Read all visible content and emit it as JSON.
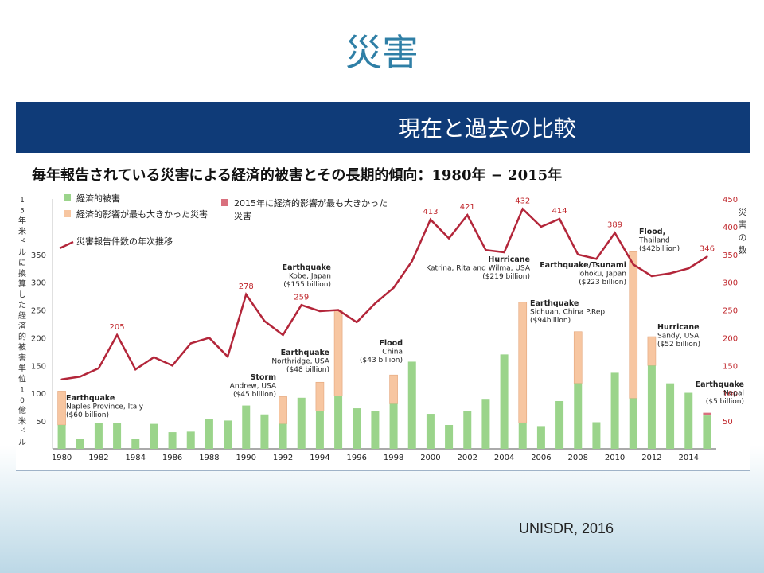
{
  "slide": {
    "title": "災害",
    "banner": "現在と過去の比較",
    "source": "UNISDR, 2016"
  },
  "colors": {
    "loss_bar": "#9bd48b",
    "max_bar": "#f7c6a1",
    "bar_2015": "#d9707e",
    "line": "#b3263a",
    "axis_right": "#c0282d",
    "banner": "#0f3b78",
    "title": "#2f7fa6"
  },
  "chart_data": {
    "type": "bar",
    "title": "毎年報告されている災害による経済的被害とその長期的傾向：1980年 − 2015年",
    "ylabel": "15年米ドルに換算した経済的被害単位10億米ドル",
    "y2label": "災害の数",
    "ylim": [
      0,
      450
    ],
    "y2lim": [
      0,
      450
    ],
    "yticks": [
      50,
      100,
      150,
      200,
      250,
      300,
      350
    ],
    "y2ticks": [
      50,
      100,
      150,
      200,
      250,
      300,
      350,
      400,
      450
    ],
    "years": [
      1980,
      1981,
      1982,
      1983,
      1984,
      1985,
      1986,
      1987,
      1988,
      1989,
      1990,
      1991,
      1992,
      1993,
      1994,
      1995,
      1996,
      1997,
      1998,
      1999,
      2000,
      2001,
      2002,
      2003,
      2004,
      2005,
      2006,
      2007,
      2008,
      2009,
      2010,
      2011,
      2012,
      2013,
      2014,
      2015
    ],
    "xtick_labels": [
      "1980",
      "1982",
      "1984",
      "1986",
      "1988",
      "1990",
      "1992",
      "1994",
      "1996",
      "1998",
      "2000",
      "2002",
      "2004",
      "2006",
      "2008",
      "2010",
      "2012",
      "2014"
    ],
    "series": [
      {
        "name": "経済的被害",
        "type": "bar",
        "values": [
          43,
          18,
          47,
          47,
          18,
          45,
          30,
          31,
          53,
          51,
          78,
          62,
          45,
          92,
          68,
          95,
          73,
          68,
          81,
          157,
          63,
          43,
          68,
          90,
          170,
          47,
          41,
          86,
          118,
          48,
          137,
          91,
          150,
          118,
          101,
          60
        ]
      },
      {
        "name": "経済的影響が最も大きかった災害",
        "type": "bar_stack_total",
        "values": [
          104,
          null,
          null,
          null,
          null,
          null,
          null,
          null,
          null,
          null,
          null,
          null,
          94,
          null,
          120,
          250,
          null,
          null,
          133,
          null,
          null,
          null,
          null,
          null,
          null,
          264,
          null,
          null,
          211,
          null,
          null,
          355,
          202,
          null,
          null,
          null
        ]
      },
      {
        "name": "2015年に経済的影響が最も大きかった災害",
        "type": "bar_stack_total",
        "values": [
          null,
          null,
          null,
          null,
          null,
          null,
          null,
          null,
          null,
          null,
          null,
          null,
          null,
          null,
          null,
          null,
          null,
          null,
          null,
          null,
          null,
          null,
          null,
          null,
          null,
          null,
          null,
          null,
          null,
          null,
          null,
          null,
          null,
          null,
          null,
          65
        ]
      },
      {
        "name": "災害報告件数の年次推移",
        "type": "line",
        "axis": "right",
        "values": [
          125,
          130,
          145,
          205,
          143,
          165,
          150,
          190,
          200,
          166,
          278,
          230,
          205,
          259,
          248,
          250,
          228,
          262,
          290,
          338,
          413,
          379,
          421,
          358,
          354,
          432,
          400,
          414,
          350,
          342,
          389,
          332,
          311,
          316,
          325,
          346
        ]
      }
    ],
    "point_labels": [
      {
        "year": 1983,
        "text": "205"
      },
      {
        "year": 1990,
        "text": "278"
      },
      {
        "year": 1993,
        "text": "259"
      },
      {
        "year": 2000,
        "text": "413"
      },
      {
        "year": 2002,
        "text": "421"
      },
      {
        "year": 2005,
        "text": "432"
      },
      {
        "year": 2007,
        "text": "414"
      },
      {
        "year": 2010,
        "text": "389"
      },
      {
        "year": 2015,
        "text": "346"
      }
    ],
    "annotations": [
      {
        "id": "a1980",
        "year": 1980,
        "value": 104,
        "lines": [
          "Earthquake",
          "Naples Province, Italy",
          "($60 billion)"
        ]
      },
      {
        "id": "a1992",
        "year": 1992,
        "value": 94,
        "lines": [
          "Storm",
          "Andrew, USA",
          "($45 billion)"
        ]
      },
      {
        "id": "a1994",
        "year": 1994,
        "value": 120,
        "lines": [
          "Earthquake",
          "Northridge, USA",
          "($48 billion)"
        ]
      },
      {
        "id": "a1995",
        "year": 1995,
        "value": 250,
        "lines": [
          "Earthquake",
          "Kobe, Japan",
          "($155 billion)"
        ]
      },
      {
        "id": "a1998",
        "year": 1998,
        "value": 133,
        "lines": [
          "Flood",
          "China",
          "($43 billion)"
        ]
      },
      {
        "id": "a2005",
        "year": 2005,
        "value": 264,
        "lines": [
          "Hurricane",
          "Katrina, Rita and Wilma, USA",
          "($219 billion)"
        ]
      },
      {
        "id": "a2008",
        "year": 2008,
        "value": 211,
        "lines": [
          "Earthquake",
          "Sichuan, China P.Rep",
          "($94billion)"
        ]
      },
      {
        "id": "a2011j",
        "year": 2011,
        "value": 310,
        "lines": [
          "Earthquake/Tsunami",
          "Tohoku, Japan",
          "($223 billion)"
        ]
      },
      {
        "id": "a2011t",
        "year": 2011,
        "value": 355,
        "lines": [
          "Flood,",
          "Thailand",
          "($42billion)"
        ]
      },
      {
        "id": "a2012",
        "year": 2012,
        "value": 202,
        "lines": [
          "Hurricane",
          "Sandy, USA",
          "($52 billion)"
        ]
      },
      {
        "id": "a2015",
        "year": 2015,
        "value": 65,
        "lines": [
          "Earthquake",
          "Nepal",
          "($5 billion)"
        ]
      }
    ],
    "legend": [
      {
        "label": "経済的被害",
        "kind": "green"
      },
      {
        "label": "経済的影響が最も大きかった災害",
        "kind": "orange"
      },
      {
        "label": "2015年に経済的影響が最も大きかった災害",
        "kind": "pink"
      },
      {
        "label": "災害報告件数の年次推移",
        "kind": "line"
      }
    ]
  }
}
